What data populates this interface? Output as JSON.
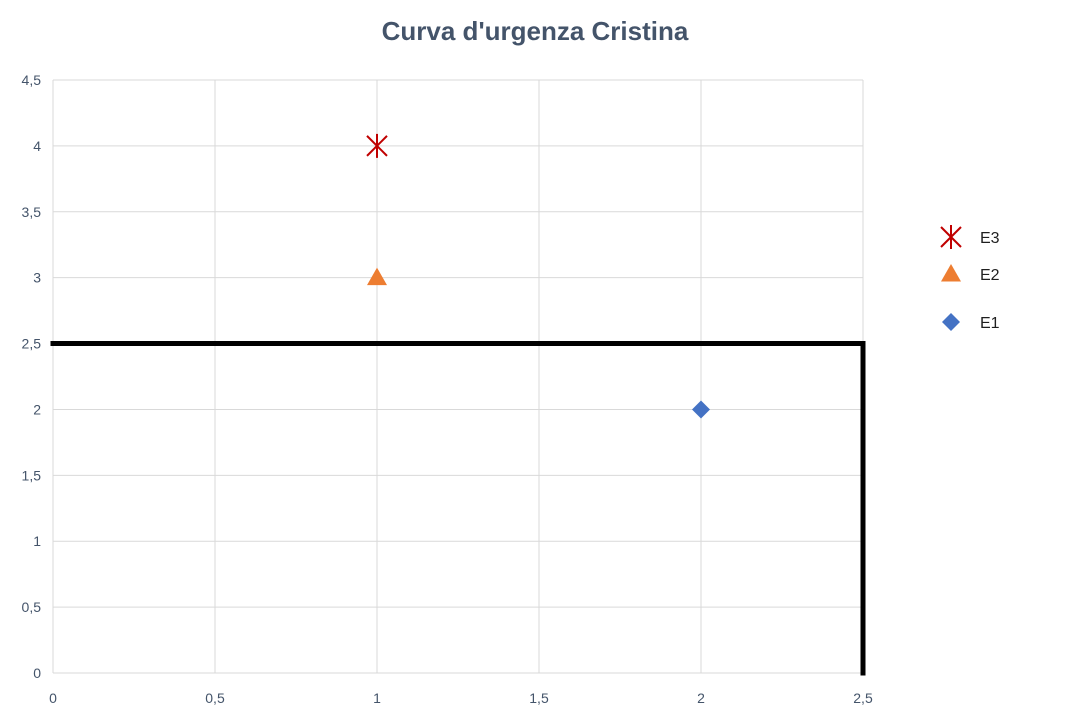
{
  "chart_data": {
    "type": "scatter",
    "title": "Curva d'urgenza Cristina",
    "xlabel": "",
    "ylabel": "",
    "xlim": [
      0,
      2.5
    ],
    "ylim": [
      0,
      4.5
    ],
    "grid": true,
    "x_ticks": [
      "0",
      "0,5",
      "1",
      "1,5",
      "2",
      "2,5"
    ],
    "y_ticks": [
      "0",
      "0,5",
      "1",
      "1,5",
      "2",
      "2,5",
      "3",
      "3,5",
      "4",
      "4,5"
    ],
    "legend_position": "right",
    "series": [
      {
        "name": "E3",
        "marker": "star",
        "color": "#c00000",
        "points": [
          {
            "x": 1,
            "y": 4
          }
        ]
      },
      {
        "name": "E2",
        "marker": "triangle",
        "color": "#ed7d31",
        "points": [
          {
            "x": 1,
            "y": 3
          }
        ]
      },
      {
        "name": "E1",
        "marker": "diamond",
        "color": "#4472c4",
        "points": [
          {
            "x": 2,
            "y": 2
          }
        ]
      }
    ],
    "threshold_lines": [
      {
        "from": {
          "x": 0,
          "y": 2.5
        },
        "to": {
          "x": 2.5,
          "y": 2.5
        },
        "color": "#000000"
      },
      {
        "from": {
          "x": 2.5,
          "y": 2.5
        },
        "to": {
          "x": 2.5,
          "y": 0
        },
        "color": "#000000"
      }
    ]
  }
}
